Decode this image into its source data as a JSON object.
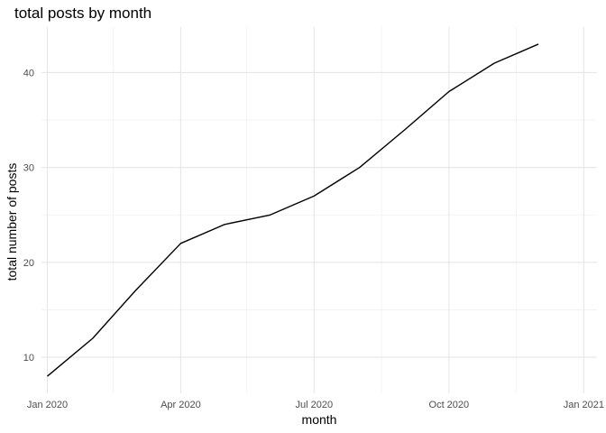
{
  "chart_data": {
    "type": "line",
    "title": "total posts by month",
    "xlabel": "month",
    "ylabel": "total number of posts",
    "x_axis_type": "date",
    "xlim": [
      "2019-12-28",
      "2021-01-10"
    ],
    "ylim": [
      6.2,
      44.8
    ],
    "x_ticks": [
      {
        "date": "2020-01-01",
        "label": "Jan 2020"
      },
      {
        "date": "2020-04-01",
        "label": "Apr 2020"
      },
      {
        "date": "2020-07-01",
        "label": "Jul 2020"
      },
      {
        "date": "2020-10-01",
        "label": "Oct 2020"
      },
      {
        "date": "2021-01-01",
        "label": "Jan 2021"
      }
    ],
    "x_minor_ticks": [
      "2020-02-15",
      "2020-05-16",
      "2020-08-16",
      "2020-11-16"
    ],
    "y_ticks": [
      10,
      20,
      30,
      40
    ],
    "y_minor_ticks": [
      15,
      25,
      35
    ],
    "grid": true,
    "line_color": "#000000",
    "series": [
      {
        "x": [
          "2020-01-01",
          "2020-02-01",
          "2020-03-01",
          "2020-04-01",
          "2020-05-01",
          "2020-06-01",
          "2020-07-01",
          "2020-08-01",
          "2020-09-01",
          "2020-10-01",
          "2020-11-01",
          "2020-12-01"
        ],
        "values": [
          8,
          12,
          17,
          22,
          24,
          25,
          27,
          30,
          34,
          38,
          41,
          43
        ]
      }
    ]
  }
}
